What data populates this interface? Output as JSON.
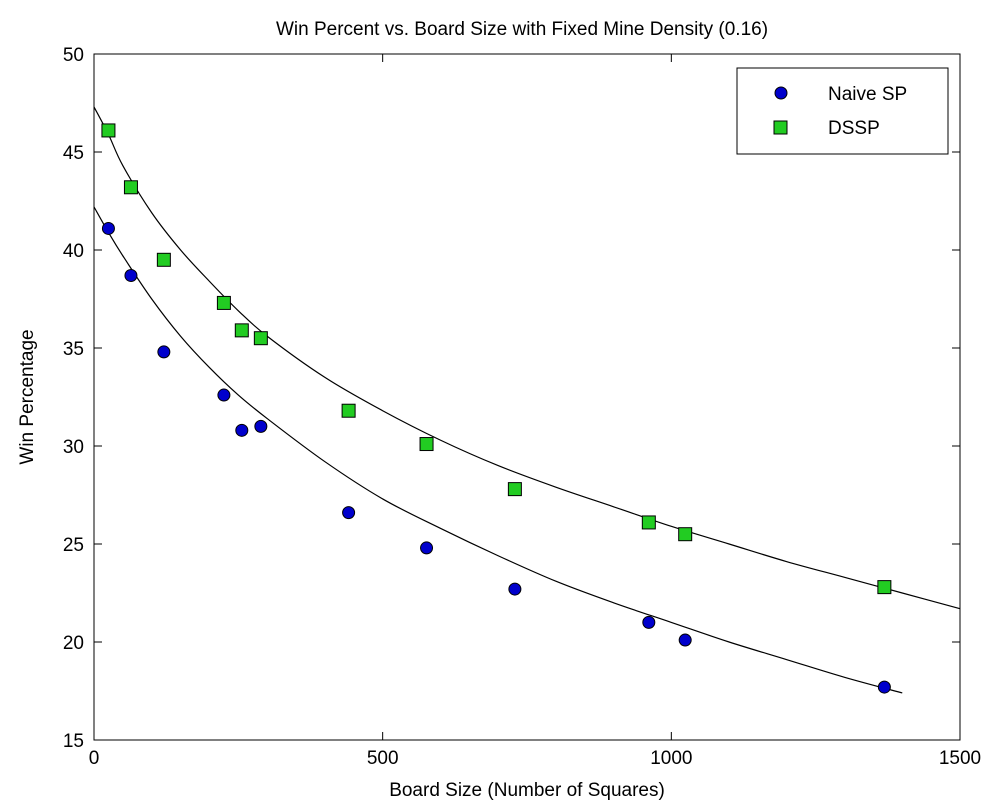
{
  "chart_data": {
    "type": "scatter",
    "title": "Win Percent vs. Board Size with Fixed Mine Density (0.16)",
    "xlabel": "Board Size (Number of Squares)",
    "ylabel": "Win Percentage",
    "xlim": [
      0,
      1500
    ],
    "ylim": [
      15,
      50
    ],
    "xticks": [
      0,
      500,
      1000,
      1500
    ],
    "yticks": [
      15,
      20,
      25,
      30,
      35,
      40,
      45,
      50
    ],
    "grid": false,
    "legend_position": "top-right",
    "series": [
      {
        "name": "Naive SP",
        "marker": "circle",
        "color": "#0000cc",
        "x": [
          25,
          64,
          121,
          225,
          256,
          289,
          441,
          576,
          729,
          961,
          1024,
          1369
        ],
        "y": [
          41.1,
          38.7,
          34.8,
          32.6,
          30.8,
          31.0,
          26.6,
          24.8,
          22.7,
          21.0,
          20.1,
          17.7
        ]
      },
      {
        "name": "DSSP",
        "marker": "square",
        "color": "#22cc22",
        "x": [
          25,
          64,
          121,
          225,
          256,
          289,
          441,
          576,
          729,
          961,
          1024,
          1369
        ],
        "y": [
          46.1,
          43.2,
          39.5,
          37.3,
          35.9,
          35.5,
          31.8,
          30.1,
          27.8,
          26.1,
          25.5,
          22.8
        ]
      }
    ],
    "fit_curves": [
      {
        "series": "Naive SP",
        "x_range": [
          0,
          1400
        ],
        "x": [
          0,
          25,
          50,
          100,
          150,
          200,
          250,
          300,
          400,
          500,
          600,
          700,
          800,
          900,
          1000,
          1100,
          1200,
          1300,
          1400
        ],
        "y": [
          42.2,
          40.9,
          39.7,
          37.5,
          35.6,
          34.0,
          32.6,
          31.4,
          29.2,
          27.3,
          25.8,
          24.4,
          23.1,
          22.0,
          21.0,
          20.0,
          19.1,
          18.2,
          17.4
        ]
      },
      {
        "series": "DSSP",
        "x_range": [
          0,
          1500
        ],
        "x": [
          0,
          25,
          50,
          100,
          150,
          200,
          250,
          300,
          400,
          500,
          600,
          700,
          800,
          900,
          1000,
          1100,
          1200,
          1300,
          1400,
          1500
        ],
        "y": [
          47.3,
          45.9,
          44.3,
          41.9,
          40.0,
          38.4,
          36.9,
          35.6,
          33.5,
          31.8,
          30.3,
          29.0,
          27.9,
          26.9,
          25.9,
          25.0,
          24.1,
          23.3,
          22.5,
          21.7
        ]
      }
    ]
  }
}
